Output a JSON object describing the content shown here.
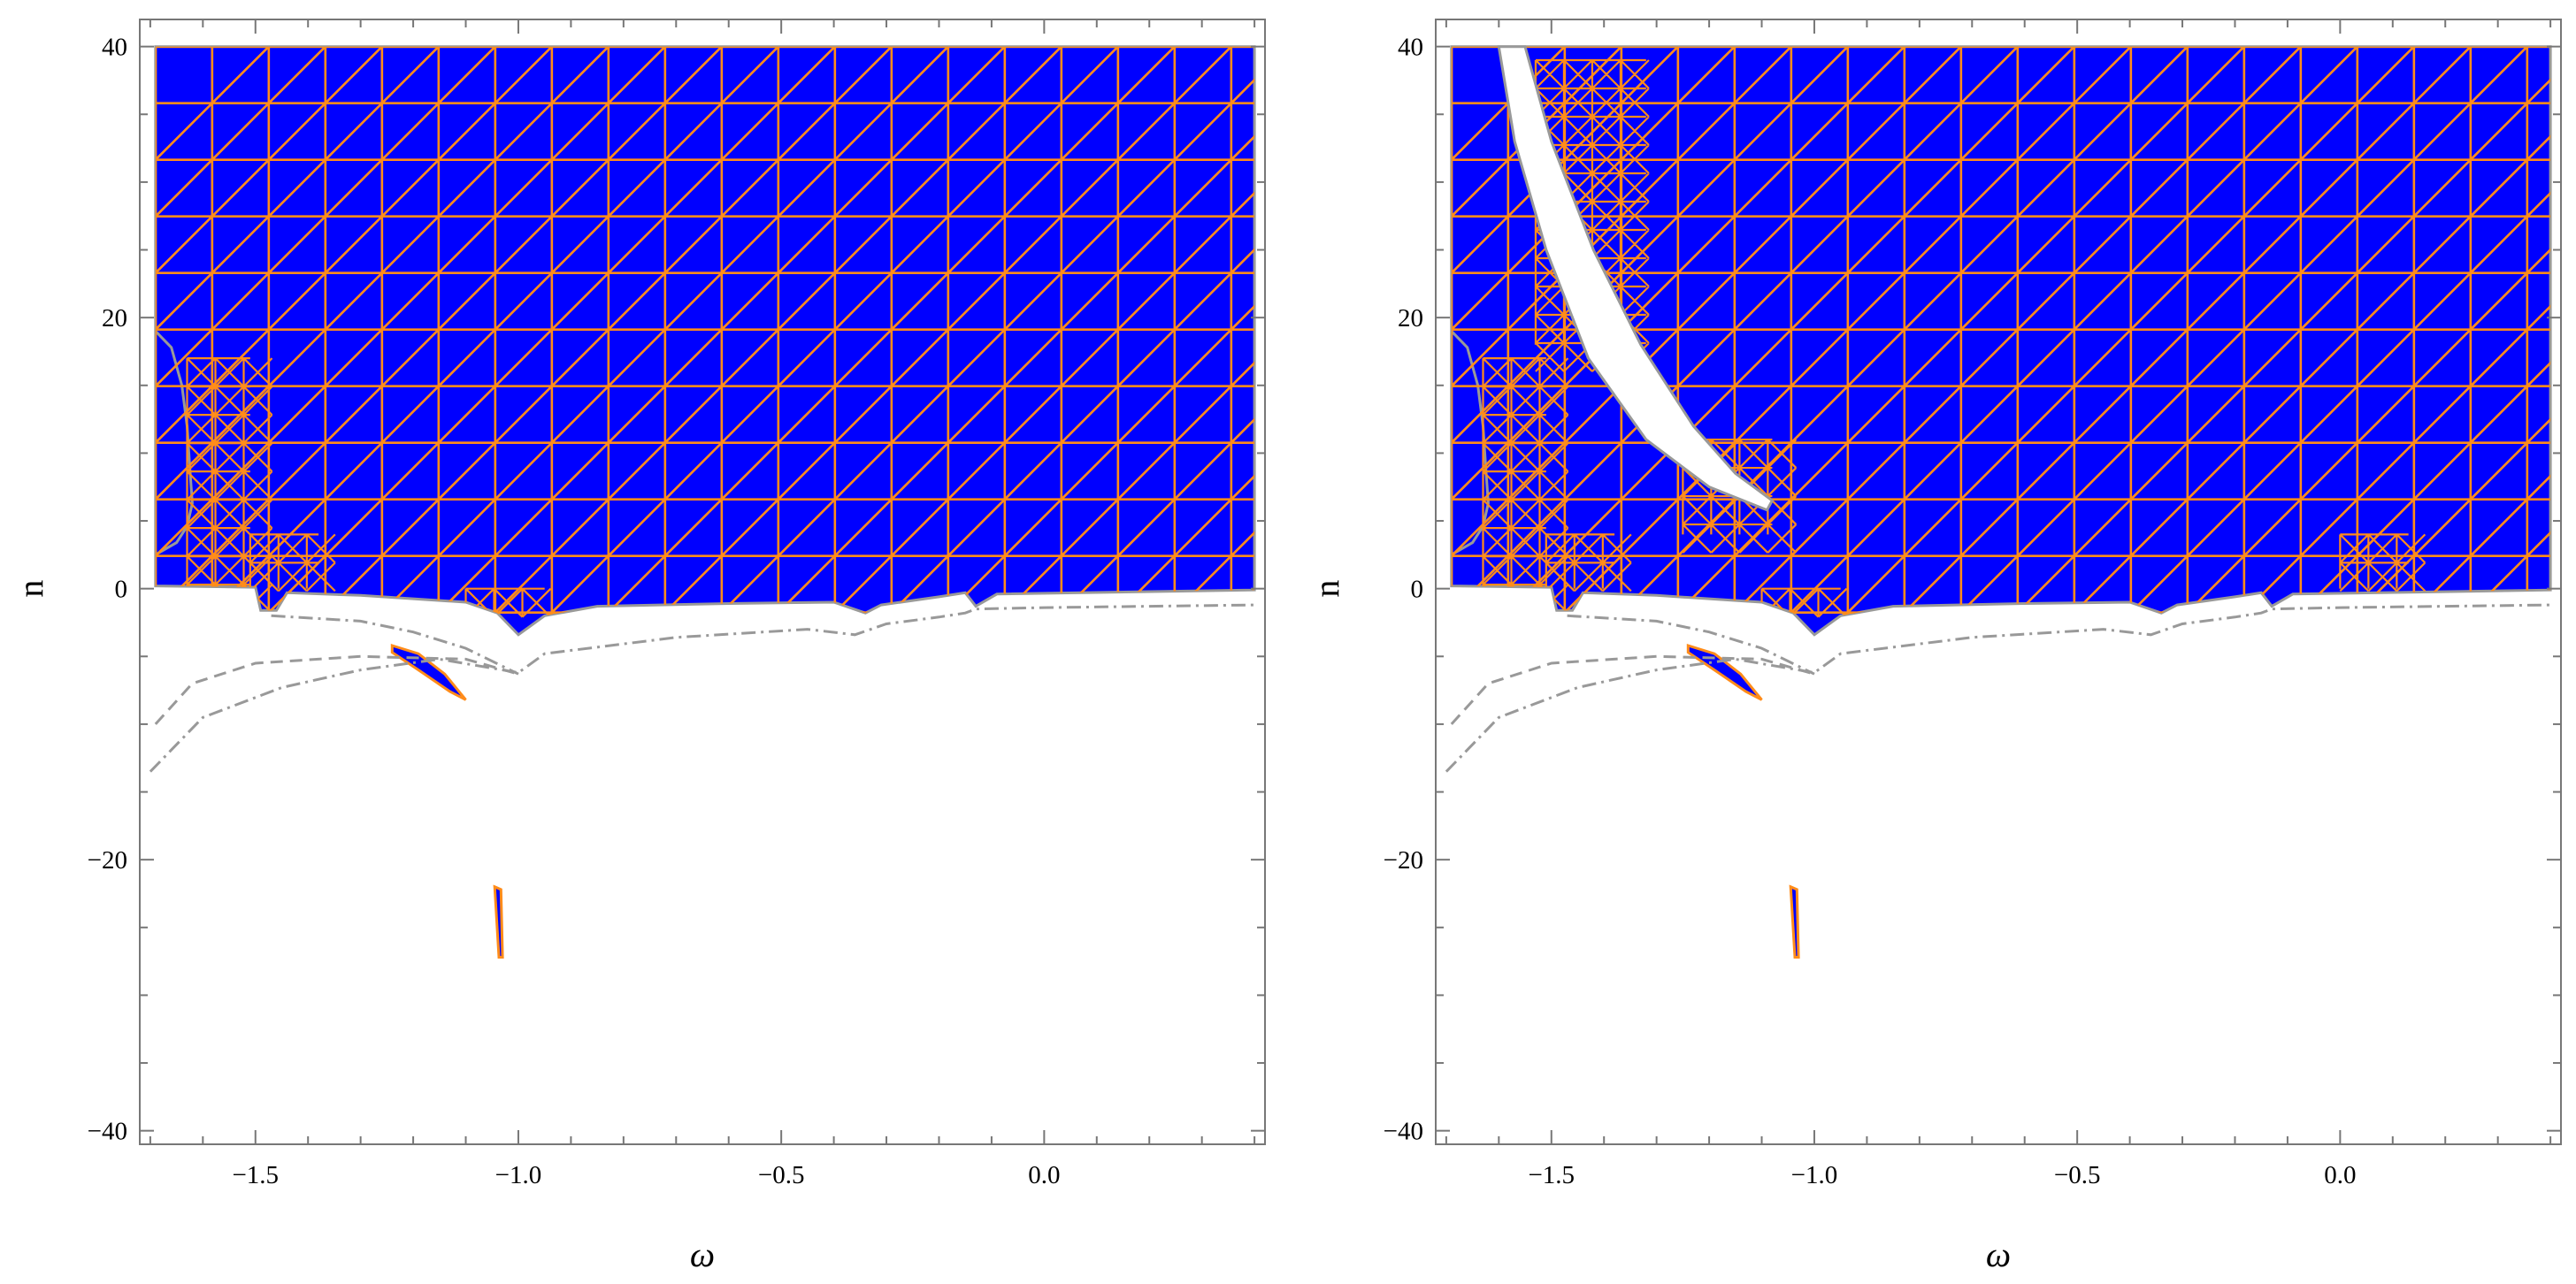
{
  "chart_data": [
    {
      "type": "region",
      "xlabel": "ω",
      "ylabel": "n",
      "xlim": [
        -1.72,
        0.42
      ],
      "ylim": [
        -41,
        42
      ],
      "x_ticks": [
        {
          "value": -1.5,
          "label": "−1.5"
        },
        {
          "value": -1.0,
          "label": "−1.0"
        },
        {
          "value": -0.5,
          "label": "−0.5"
        },
        {
          "value": 0.0,
          "label": "0.0"
        }
      ],
      "y_ticks": [
        {
          "value": 40,
          "label": "40"
        },
        {
          "value": 20,
          "label": "20"
        },
        {
          "value": 0,
          "label": "0"
        },
        {
          "value": -20,
          "label": "−20"
        },
        {
          "value": -40,
          "label": "−40"
        }
      ],
      "fill_color": "#0000ff",
      "mesh_color": "#ff8c1a",
      "boundary_color": "#999999",
      "region_top": 40,
      "region_right": 0.4,
      "region_boundary": [
        [
          -1.69,
          40
        ],
        [
          -1.69,
          2.5
        ],
        [
          -1.65,
          3.4
        ],
        [
          -1.63,
          4.6
        ],
        [
          -1.62,
          6.3
        ],
        [
          -1.625,
          9.0
        ],
        [
          -1.63,
          12.0
        ],
        [
          -1.64,
          15.0
        ],
        [
          -1.66,
          17.8
        ],
        [
          -1.69,
          19.0
        ],
        [
          -1.69,
          0.2
        ],
        [
          -1.5,
          0.1
        ],
        [
          -1.49,
          -1.6
        ],
        [
          -1.46,
          -1.6
        ],
        [
          -1.44,
          -0.3
        ],
        [
          -1.3,
          -0.5
        ],
        [
          -1.1,
          -1.0
        ],
        [
          -1.04,
          -1.8
        ],
        [
          -1.0,
          -3.4
        ],
        [
          -0.95,
          -2.0
        ],
        [
          -0.85,
          -1.3
        ],
        [
          -0.6,
          -1.1
        ],
        [
          -0.4,
          -1.0
        ],
        [
          -0.34,
          -1.8
        ],
        [
          -0.31,
          -1.2
        ],
        [
          -0.2,
          -0.6
        ],
        [
          -0.15,
          -0.3
        ],
        [
          -0.13,
          -1.3
        ],
        [
          -0.09,
          -0.4
        ],
        [
          0.4,
          -0.1
        ],
        [
          0.4,
          40
        ]
      ],
      "islands": [
        [
          [
            -1.24,
            -4.2
          ],
          [
            -1.19,
            -4.8
          ],
          [
            -1.14,
            -6.3
          ],
          [
            -1.1,
            -8.2
          ],
          [
            -1.13,
            -7.6
          ],
          [
            -1.19,
            -6.0
          ],
          [
            -1.24,
            -4.7
          ]
        ],
        [
          [
            -1.045,
            -22.0
          ],
          [
            -1.033,
            -22.2
          ],
          [
            -1.03,
            -27.2
          ],
          [
            -1.037,
            -27.2
          ]
        ]
      ],
      "dashed_curves": [
        [
          [
            -1.69,
            -10.0
          ],
          [
            -1.62,
            -7.0
          ],
          [
            -1.5,
            -5.5
          ],
          [
            -1.3,
            -5.0
          ],
          [
            -1.1,
            -5.2
          ],
          [
            -1.0,
            -6.3
          ]
        ]
      ],
      "dashdot_curves": [
        [
          [
            -1.7,
            -13.5
          ],
          [
            -1.6,
            -9.5
          ],
          [
            -1.45,
            -7.3
          ],
          [
            -1.3,
            -6.0
          ],
          [
            -1.15,
            -5.2
          ],
          [
            -1.0,
            -6.2
          ],
          [
            -0.95,
            -4.8
          ],
          [
            -0.7,
            -3.6
          ],
          [
            -0.45,
            -3.0
          ],
          [
            -0.36,
            -3.4
          ],
          [
            -0.3,
            -2.6
          ],
          [
            -0.2,
            -2.1
          ],
          [
            -0.15,
            -1.8
          ],
          [
            -0.13,
            -1.5
          ],
          [
            0.0,
            -1.4
          ],
          [
            0.4,
            -1.2
          ]
        ],
        [
          [
            -1.47,
            -2.0
          ],
          [
            -1.3,
            -2.4
          ],
          [
            -1.2,
            -3.2
          ],
          [
            -1.1,
            -4.4
          ],
          [
            -1.0,
            -6.3
          ]
        ]
      ],
      "white_slit": null,
      "refined_blocks": [
        {
          "x": [
            -1.63,
            -1.51
          ],
          "y": [
            0,
            17
          ]
        },
        {
          "x": [
            -1.51,
            -1.38
          ],
          "y": [
            0,
            4
          ]
        },
        {
          "x": [
            -1.1,
            -0.95
          ],
          "y": [
            -2,
            0
          ]
        }
      ]
    },
    {
      "type": "region",
      "xlabel": "ω",
      "ylabel": "n",
      "xlim": [
        -1.72,
        0.42
      ],
      "ylim": [
        -41,
        42
      ],
      "x_ticks": [
        {
          "value": -1.5,
          "label": "−1.5"
        },
        {
          "value": -1.0,
          "label": "−1.0"
        },
        {
          "value": -0.5,
          "label": "−0.5"
        },
        {
          "value": 0.0,
          "label": "0.0"
        }
      ],
      "y_ticks": [
        {
          "value": 40,
          "label": "40"
        },
        {
          "value": 20,
          "label": "20"
        },
        {
          "value": 0,
          "label": "0"
        },
        {
          "value": -20,
          "label": "−20"
        },
        {
          "value": -40,
          "label": "−40"
        }
      ],
      "fill_color": "#0000ff",
      "mesh_color": "#ff8c1a",
      "boundary_color": "#999999",
      "region_top": 40,
      "region_right": 0.4,
      "region_boundary": [
        [
          -1.69,
          40
        ],
        [
          -1.69,
          2.5
        ],
        [
          -1.65,
          3.4
        ],
        [
          -1.63,
          4.6
        ],
        [
          -1.62,
          6.3
        ],
        [
          -1.625,
          9.0
        ],
        [
          -1.63,
          12.0
        ],
        [
          -1.64,
          15.0
        ],
        [
          -1.66,
          17.8
        ],
        [
          -1.69,
          19.0
        ],
        [
          -1.69,
          0.2
        ],
        [
          -1.5,
          0.1
        ],
        [
          -1.49,
          -1.6
        ],
        [
          -1.46,
          -1.6
        ],
        [
          -1.44,
          -0.3
        ],
        [
          -1.3,
          -0.5
        ],
        [
          -1.1,
          -1.0
        ],
        [
          -1.04,
          -1.8
        ],
        [
          -1.0,
          -3.4
        ],
        [
          -0.95,
          -2.0
        ],
        [
          -0.85,
          -1.3
        ],
        [
          -0.6,
          -1.1
        ],
        [
          -0.4,
          -1.0
        ],
        [
          -0.34,
          -1.8
        ],
        [
          -0.31,
          -1.2
        ],
        [
          -0.2,
          -0.6
        ],
        [
          -0.15,
          -0.3
        ],
        [
          -0.13,
          -1.3
        ],
        [
          -0.09,
          -0.4
        ],
        [
          0.4,
          -0.1
        ],
        [
          0.4,
          40
        ]
      ],
      "islands": [
        [
          [
            -1.24,
            -4.2
          ],
          [
            -1.19,
            -4.8
          ],
          [
            -1.14,
            -6.3
          ],
          [
            -1.1,
            -8.2
          ],
          [
            -1.13,
            -7.6
          ],
          [
            -1.19,
            -6.0
          ],
          [
            -1.24,
            -4.7
          ]
        ],
        [
          [
            -1.045,
            -22.0
          ],
          [
            -1.033,
            -22.2
          ],
          [
            -1.03,
            -27.2
          ],
          [
            -1.037,
            -27.2
          ]
        ]
      ],
      "dashed_curves": [
        [
          [
            -1.69,
            -10.0
          ],
          [
            -1.62,
            -7.0
          ],
          [
            -1.5,
            -5.5
          ],
          [
            -1.3,
            -5.0
          ],
          [
            -1.1,
            -5.2
          ],
          [
            -1.0,
            -6.3
          ]
        ]
      ],
      "dashdot_curves": [
        [
          [
            -1.7,
            -13.5
          ],
          [
            -1.6,
            -9.5
          ],
          [
            -1.45,
            -7.3
          ],
          [
            -1.3,
            -6.0
          ],
          [
            -1.15,
            -5.2
          ],
          [
            -1.0,
            -6.2
          ],
          [
            -0.95,
            -4.8
          ],
          [
            -0.7,
            -3.6
          ],
          [
            -0.45,
            -3.0
          ],
          [
            -0.36,
            -3.4
          ],
          [
            -0.3,
            -2.6
          ],
          [
            -0.2,
            -2.1
          ],
          [
            -0.15,
            -1.8
          ],
          [
            -0.13,
            -1.5
          ],
          [
            0.0,
            -1.4
          ],
          [
            0.4,
            -1.2
          ]
        ],
        [
          [
            -1.47,
            -2.0
          ],
          [
            -1.3,
            -2.4
          ],
          [
            -1.2,
            -3.2
          ],
          [
            -1.1,
            -4.4
          ],
          [
            -1.0,
            -6.3
          ]
        ]
      ],
      "white_slit": [
        [
          -1.6,
          40
        ],
        [
          -1.55,
          40
        ],
        [
          -1.5,
          33
        ],
        [
          -1.42,
          25
        ],
        [
          -1.33,
          18
        ],
        [
          -1.23,
          12
        ],
        [
          -1.15,
          8.5
        ],
        [
          -1.08,
          6.5
        ],
        [
          -1.09,
          5.8
        ],
        [
          -1.2,
          7.5
        ],
        [
          -1.32,
          11
        ],
        [
          -1.43,
          17
        ],
        [
          -1.51,
          25
        ],
        [
          -1.57,
          33
        ]
      ],
      "refined_blocks": [
        {
          "x": [
            -1.63,
            -1.51
          ],
          "y": [
            0,
            17
          ]
        },
        {
          "x": [
            -1.51,
            -1.38
          ],
          "y": [
            0,
            4
          ]
        },
        {
          "x": [
            -1.1,
            -0.95
          ],
          "y": [
            -2,
            0
          ]
        },
        {
          "x": [
            -1.53,
            -1.32
          ],
          "y": [
            18,
            39
          ]
        },
        {
          "x": [
            -1.25,
            -1.08
          ],
          "y": [
            4,
            11
          ]
        },
        {
          "x": [
            0.0,
            0.13
          ],
          "y": [
            0,
            4
          ]
        }
      ]
    }
  ]
}
